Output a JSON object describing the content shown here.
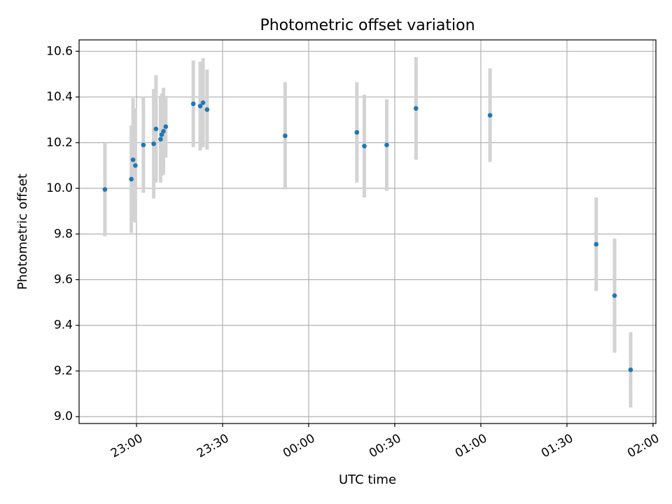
{
  "chart_data": {
    "type": "scatter",
    "title": "Photometric offset variation",
    "xlabel": "UTC time",
    "ylabel": "Photometric offset",
    "x_axis_type": "time",
    "xlim": [
      "22:40",
      "02:01"
    ],
    "ylim": [
      8.97,
      10.65
    ],
    "x_ticks": [
      "23:00",
      "23:30",
      "00:00",
      "00:30",
      "01:00",
      "01:30",
      "02:00"
    ],
    "y_ticks": [
      9.0,
      9.2,
      9.4,
      9.6,
      9.8,
      10.0,
      10.2,
      10.4,
      10.6
    ],
    "y_tick_labels": [
      "9.0",
      "9.2",
      "9.4",
      "9.6",
      "9.8",
      "10.0",
      "10.2",
      "10.4",
      "10.6"
    ],
    "grid": true,
    "marker_color": "#1f77b4",
    "errorbar_color": "#d3d3d3",
    "points": [
      {
        "x": "22:49:00",
        "y": 9.995,
        "err": 0.205
      },
      {
        "x": "22:58:12",
        "y": 10.04,
        "err": 0.235
      },
      {
        "x": "22:58:48",
        "y": 10.125,
        "err": 0.27
      },
      {
        "x": "22:59:36",
        "y": 10.1,
        "err": 0.25
      },
      {
        "x": "23:02:24",
        "y": 10.19,
        "err": 0.21
      },
      {
        "x": "23:06:00",
        "y": 10.195,
        "err": 0.24
      },
      {
        "x": "23:06:48",
        "y": 10.26,
        "err": 0.235
      },
      {
        "x": "23:08:24",
        "y": 10.215,
        "err": 0.19
      },
      {
        "x": "23:08:48",
        "y": 10.235,
        "err": 0.18
      },
      {
        "x": "23:09:24",
        "y": 10.25,
        "err": 0.19
      },
      {
        "x": "23:10:12",
        "y": 10.27,
        "err": 0.135
      },
      {
        "x": "23:19:48",
        "y": 10.37,
        "err": 0.19
      },
      {
        "x": "23:22:12",
        "y": 10.36,
        "err": 0.195
      },
      {
        "x": "23:23:12",
        "y": 10.375,
        "err": 0.195
      },
      {
        "x": "23:24:36",
        "y": 10.345,
        "err": 0.175
      },
      {
        "x": "23:51:48",
        "y": 10.23,
        "err": 0.235
      },
      {
        "x": "00:16:48",
        "y": 10.245,
        "err": 0.22
      },
      {
        "x": "00:19:24",
        "y": 10.185,
        "err": 0.225
      },
      {
        "x": "00:27:12",
        "y": 10.19,
        "err": 0.2
      },
      {
        "x": "00:37:24",
        "y": 10.35,
        "err": 0.225
      },
      {
        "x": "01:03:12",
        "y": 10.32,
        "err": 0.205
      },
      {
        "x": "01:40:12",
        "y": 9.755,
        "err": 0.205
      },
      {
        "x": "01:46:36",
        "y": 9.53,
        "err": 0.25
      },
      {
        "x": "01:52:12",
        "y": 9.205,
        "err": 0.165
      }
    ]
  }
}
